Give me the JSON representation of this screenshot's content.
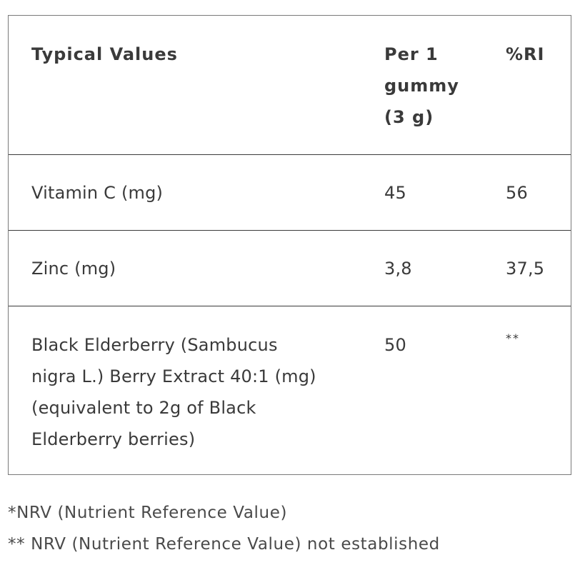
{
  "table": {
    "headers": {
      "name": "Typical Values",
      "per_line1": "Per 1",
      "per_line2": "gummy",
      "per_line3": "(3 g)",
      "ri": "%RI"
    },
    "rows": [
      {
        "name": "Vitamin C (mg)",
        "per": "45",
        "ri": "56"
      },
      {
        "name": "Zinc (mg)",
        "per": "3,8",
        "ri": "37,5"
      },
      {
        "name_line1": "Black Elderberry (Sambucus",
        "name_line2": "nigra L.) Berry Extract 40:1 (mg)",
        "name_line3": "(equivalent to 2g of Black",
        "name_line4": "Elderberry berries)",
        "per": "50",
        "ri": "**"
      }
    ]
  },
  "footnotes": {
    "nrv": "*NRV (Nutrient Reference Value)",
    "not_established": "** NRV (Nutrient Reference Value) not established"
  }
}
